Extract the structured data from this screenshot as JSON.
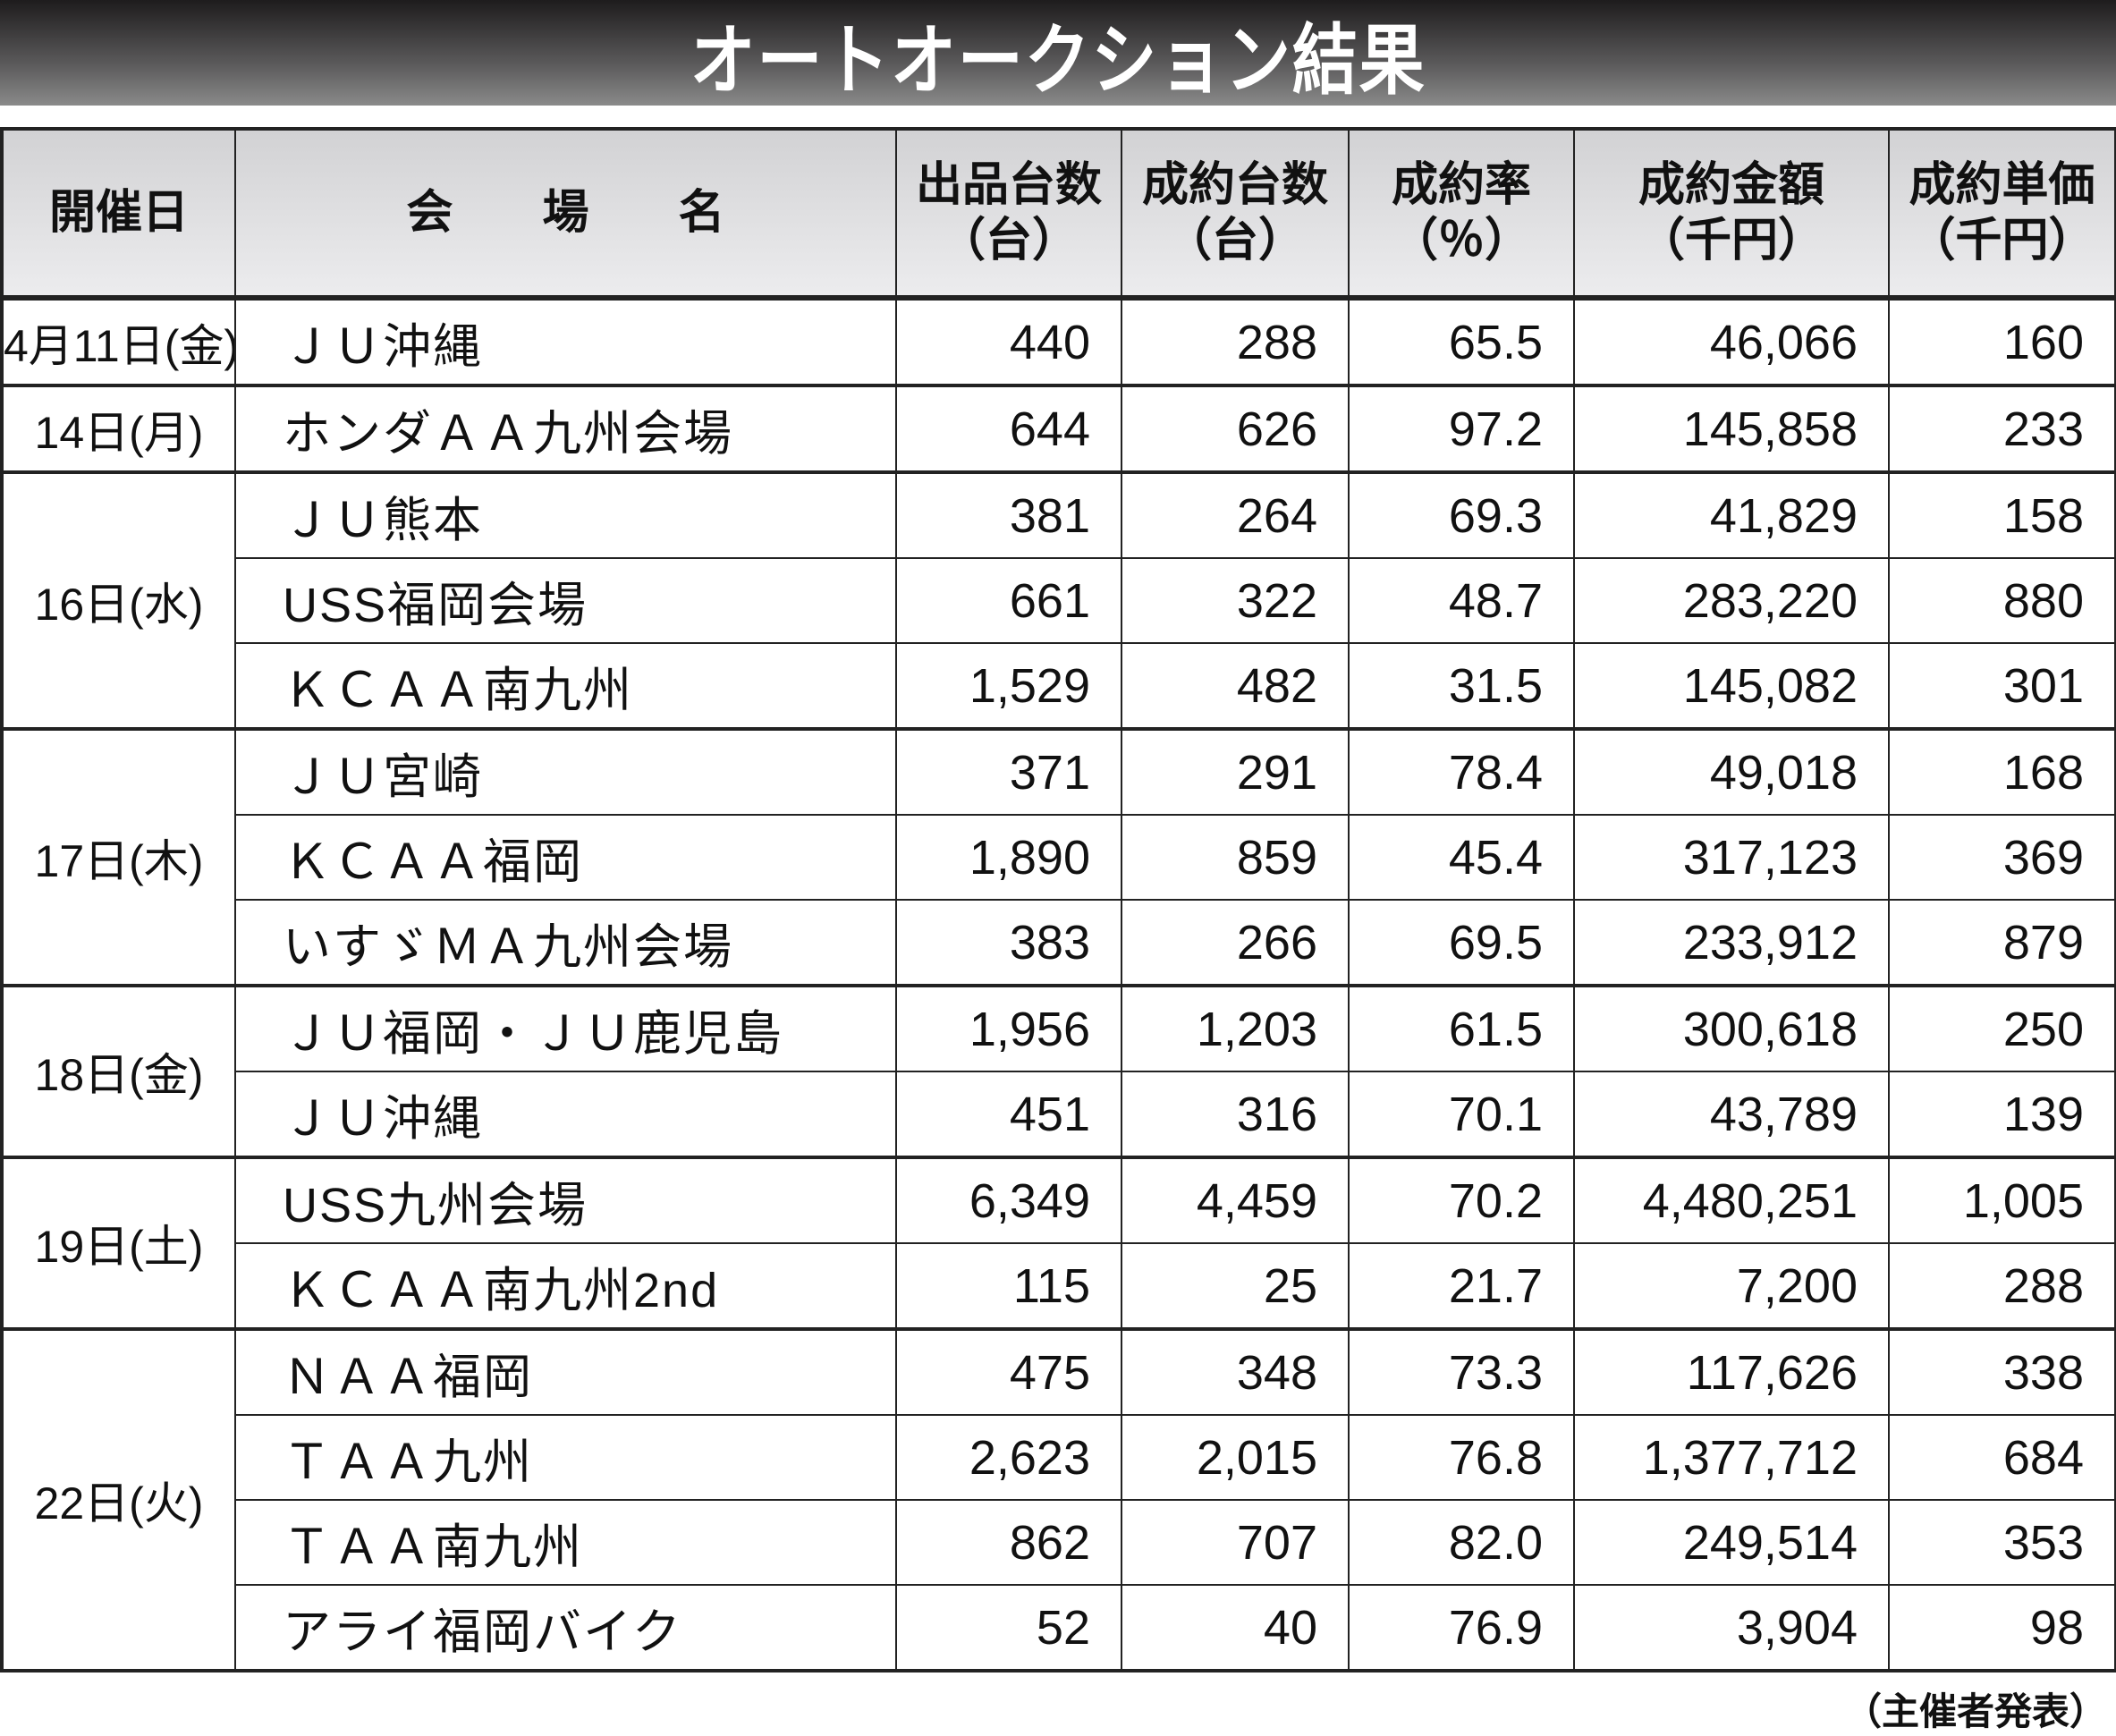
{
  "title": "オートオークション結果",
  "header": {
    "date": "開催日",
    "venue_chars": [
      "会",
      "場",
      "名"
    ],
    "listed": [
      "出品台数",
      "（台）"
    ],
    "sold": [
      "成約台数",
      "（台）"
    ],
    "rate": [
      "成約率",
      "（％）"
    ],
    "amount": [
      "成約金額",
      "（千円）"
    ],
    "unit_price": [
      "成約単価",
      "（千円）"
    ]
  },
  "groups": [
    {
      "date": "4月11日(金)",
      "rows": [
        [
          "ＪＵ沖縄",
          "440",
          "288",
          "65.5",
          "46,066",
          "160"
        ]
      ]
    },
    {
      "date": "14日(月)",
      "rows": [
        [
          "ホンダＡＡ九州会場",
          "644",
          "626",
          "97.2",
          "145,858",
          "233"
        ]
      ]
    },
    {
      "date": "16日(水)",
      "rows": [
        [
          "ＪＵ熊本",
          "381",
          "264",
          "69.3",
          "41,829",
          "158"
        ],
        [
          "USS福岡会場",
          "661",
          "322",
          "48.7",
          "283,220",
          "880"
        ],
        [
          "ＫＣＡＡ南九州",
          "1,529",
          "482",
          "31.5",
          "145,082",
          "301"
        ]
      ]
    },
    {
      "date": "17日(木)",
      "rows": [
        [
          "ＪＵ宮崎",
          "371",
          "291",
          "78.4",
          "49,018",
          "168"
        ],
        [
          "ＫＣＡＡ福岡",
          "1,890",
          "859",
          "45.4",
          "317,123",
          "369"
        ],
        [
          "いすゞＭＡ九州会場",
          "383",
          "266",
          "69.5",
          "233,912",
          "879"
        ]
      ]
    },
    {
      "date": "18日(金)",
      "rows": [
        [
          "ＪＵ福岡・ＪＵ鹿児島",
          "1,956",
          "1,203",
          "61.5",
          "300,618",
          "250"
        ],
        [
          "ＪＵ沖縄",
          "451",
          "316",
          "70.1",
          "43,789",
          "139"
        ]
      ]
    },
    {
      "date": "19日(土)",
      "rows": [
        [
          "USS九州会場",
          "6,349",
          "4,459",
          "70.2",
          "4,480,251",
          "1,005"
        ],
        [
          "ＫＣＡＡ南九州2nd",
          "115",
          "25",
          "21.7",
          "7,200",
          "288"
        ]
      ]
    },
    {
      "date": "22日(火)",
      "rows": [
        [
          "ＮＡＡ福岡",
          "475",
          "348",
          "73.3",
          "117,626",
          "338"
        ],
        [
          "ＴＡＡ九州",
          "2,623",
          "2,015",
          "76.8",
          "1,377,712",
          "684"
        ],
        [
          "ＴＡＡ南九州",
          "862",
          "707",
          "82.0",
          "249,514",
          "353"
        ],
        [
          "アライ福岡バイク",
          "52",
          "40",
          "76.9",
          "3,904",
          "98"
        ]
      ]
    }
  ],
  "footer": "（主催者発表）"
}
